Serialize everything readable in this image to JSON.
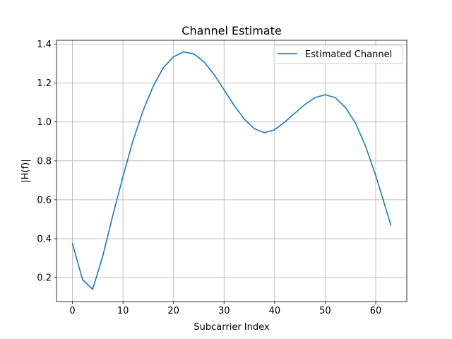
{
  "chart_data": {
    "type": "line",
    "title": "Channel Estimate",
    "xlabel": "Subcarrier Index",
    "ylabel": "|H(f)|",
    "xlim": [
      -3.15,
      66.15
    ],
    "ylim": [
      0.077,
      1.42
    ],
    "xticks": [
      0,
      10,
      20,
      30,
      40,
      50,
      60
    ],
    "yticks": [
      0.2,
      0.4,
      0.6,
      0.8,
      1.0,
      1.2,
      1.4
    ],
    "xtick_labels": [
      "0",
      "10",
      "20",
      "30",
      "40",
      "50",
      "60"
    ],
    "ytick_labels": [
      "0.2",
      "0.4",
      "0.6",
      "0.8",
      "1.0",
      "1.2",
      "1.4"
    ],
    "grid": true,
    "legend_position": "top-right",
    "series": [
      {
        "name": "Estimated Channel",
        "color": "#1f77b4",
        "x": [
          0,
          2,
          4,
          6,
          8,
          10,
          12,
          14,
          16,
          18,
          20,
          22,
          24,
          26,
          28,
          30,
          32,
          34,
          36,
          38,
          40,
          42,
          44,
          46,
          48,
          50,
          52,
          54,
          56,
          58,
          60,
          63
        ],
        "y": [
          0.375,
          0.19,
          0.14,
          0.31,
          0.52,
          0.72,
          0.905,
          1.06,
          1.185,
          1.28,
          1.335,
          1.36,
          1.35,
          1.31,
          1.245,
          1.165,
          1.085,
          1.015,
          0.965,
          0.945,
          0.96,
          1.0,
          1.045,
          1.09,
          1.125,
          1.14,
          1.125,
          1.075,
          0.995,
          0.875,
          0.725,
          0.47
        ]
      }
    ]
  }
}
